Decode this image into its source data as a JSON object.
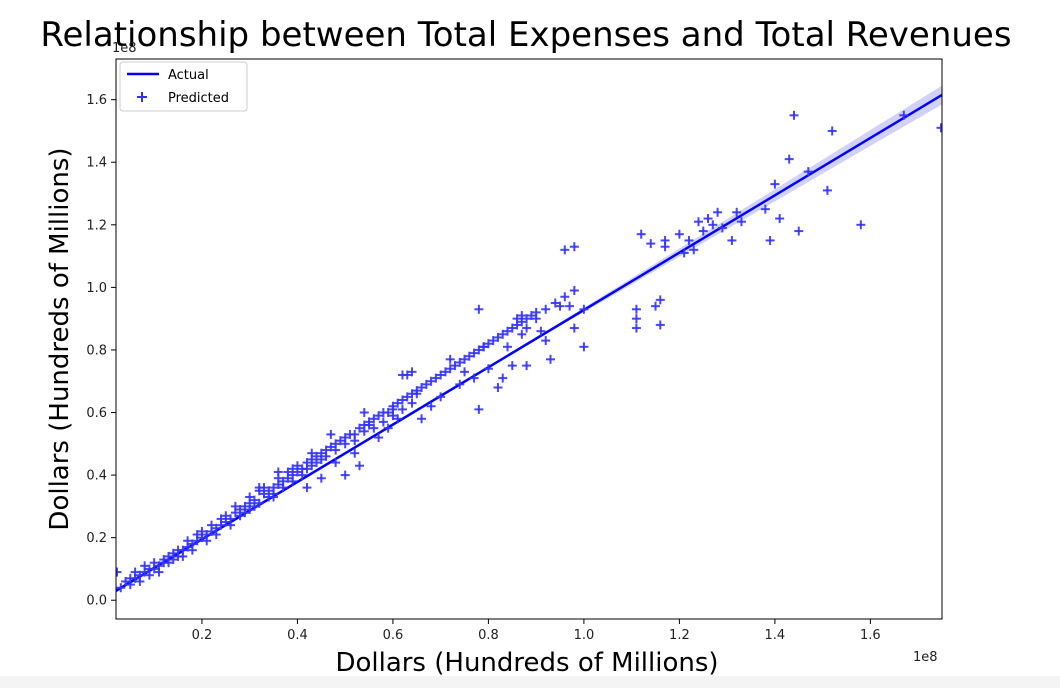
{
  "chart_data": {
    "type": "scatter",
    "title": "Relationship between Total Expenses and Total Revenues",
    "xlabel": "Dollars (Hundreds of Millions)",
    "ylabel": "Dollars (Hundreds of Millions)",
    "x_offset_label": "1e8",
    "y_offset_label": "1e8",
    "xlim": [
      0.02,
      1.75
    ],
    "ylim": [
      -0.06,
      1.73
    ],
    "x_ticks": [
      0.2,
      0.4,
      0.6,
      0.8,
      1.0,
      1.2,
      1.4,
      1.6
    ],
    "x_tick_labels": [
      "0.2",
      "0.4",
      "0.6",
      "0.8",
      "1.0",
      "1.2",
      "1.4",
      "1.6"
    ],
    "y_ticks": [
      0.0,
      0.2,
      0.4,
      0.6,
      0.8,
      1.0,
      1.2,
      1.4,
      1.6
    ],
    "y_tick_labels": [
      "0.0",
      "0.2",
      "0.4",
      "0.6",
      "0.8",
      "1.0",
      "1.2",
      "1.4",
      "1.6"
    ],
    "grid": false,
    "legend_position": "top-left",
    "legend": [
      {
        "label": "Actual",
        "marker": "line"
      },
      {
        "label": "Predicted",
        "marker": "plus"
      }
    ],
    "colors": {
      "line": "#0000ff",
      "marker": "#3333ff",
      "band": "#b3b3f5"
    },
    "fit_line": {
      "name": "Actual",
      "x": [
        0.02,
        1.75
      ],
      "y": [
        0.03,
        1.615
      ]
    },
    "band_halfwidth": {
      "x": [
        0.02,
        0.9,
        1.75
      ],
      "w": [
        0.006,
        0.004,
        0.03
      ]
    },
    "series": [
      {
        "name": "Predicted",
        "points": [
          [
            0.02,
            0.09
          ],
          [
            0.03,
            0.04
          ],
          [
            0.04,
            0.06
          ],
          [
            0.05,
            0.07
          ],
          [
            0.05,
            0.05
          ],
          [
            0.06,
            0.07
          ],
          [
            0.06,
            0.09
          ],
          [
            0.07,
            0.08
          ],
          [
            0.07,
            0.06
          ],
          [
            0.08,
            0.09
          ],
          [
            0.08,
            0.11
          ],
          [
            0.09,
            0.1
          ],
          [
            0.09,
            0.08
          ],
          [
            0.1,
            0.1
          ],
          [
            0.1,
            0.12
          ],
          [
            0.11,
            0.11
          ],
          [
            0.11,
            0.09
          ],
          [
            0.12,
            0.12
          ],
          [
            0.12,
            0.13
          ],
          [
            0.13,
            0.12
          ],
          [
            0.13,
            0.14
          ],
          [
            0.14,
            0.13
          ],
          [
            0.14,
            0.15
          ],
          [
            0.15,
            0.14
          ],
          [
            0.15,
            0.16
          ],
          [
            0.16,
            0.16
          ],
          [
            0.16,
            0.14
          ],
          [
            0.17,
            0.17
          ],
          [
            0.17,
            0.19
          ],
          [
            0.18,
            0.18
          ],
          [
            0.18,
            0.16
          ],
          [
            0.19,
            0.19
          ],
          [
            0.19,
            0.21
          ],
          [
            0.2,
            0.2
          ],
          [
            0.2,
            0.22
          ],
          [
            0.21,
            0.21
          ],
          [
            0.21,
            0.19
          ],
          [
            0.22,
            0.22
          ],
          [
            0.22,
            0.24
          ],
          [
            0.23,
            0.23
          ],
          [
            0.23,
            0.21
          ],
          [
            0.24,
            0.24
          ],
          [
            0.24,
            0.26
          ],
          [
            0.25,
            0.25
          ],
          [
            0.25,
            0.27
          ],
          [
            0.26,
            0.26
          ],
          [
            0.26,
            0.24
          ],
          [
            0.27,
            0.28
          ],
          [
            0.27,
            0.3
          ],
          [
            0.28,
            0.27
          ],
          [
            0.28,
            0.29
          ],
          [
            0.29,
            0.3
          ],
          [
            0.29,
            0.28
          ],
          [
            0.3,
            0.31
          ],
          [
            0.3,
            0.29
          ],
          [
            0.31,
            0.32
          ],
          [
            0.31,
            0.3
          ],
          [
            0.32,
            0.35
          ],
          [
            0.32,
            0.31
          ],
          [
            0.33,
            0.34
          ],
          [
            0.33,
            0.36
          ],
          [
            0.34,
            0.35
          ],
          [
            0.34,
            0.33
          ],
          [
            0.35,
            0.36
          ],
          [
            0.35,
            0.34
          ],
          [
            0.36,
            0.37
          ],
          [
            0.36,
            0.39
          ],
          [
            0.37,
            0.38
          ],
          [
            0.37,
            0.36
          ],
          [
            0.38,
            0.39
          ],
          [
            0.38,
            0.41
          ],
          [
            0.39,
            0.4
          ],
          [
            0.39,
            0.38
          ],
          [
            0.4,
            0.41
          ],
          [
            0.4,
            0.43
          ],
          [
            0.41,
            0.42
          ],
          [
            0.41,
            0.4
          ],
          [
            0.42,
            0.44
          ],
          [
            0.42,
            0.42
          ],
          [
            0.43,
            0.45
          ],
          [
            0.43,
            0.43
          ],
          [
            0.44,
            0.46
          ],
          [
            0.44,
            0.44
          ],
          [
            0.45,
            0.47
          ],
          [
            0.45,
            0.45
          ],
          [
            0.46,
            0.48
          ],
          [
            0.46,
            0.46
          ],
          [
            0.47,
            0.49
          ],
          [
            0.48,
            0.5
          ],
          [
            0.48,
            0.48
          ],
          [
            0.49,
            0.51
          ],
          [
            0.5,
            0.52
          ],
          [
            0.5,
            0.5
          ],
          [
            0.51,
            0.53
          ],
          [
            0.52,
            0.53
          ],
          [
            0.52,
            0.51
          ],
          [
            0.53,
            0.55
          ],
          [
            0.54,
            0.56
          ],
          [
            0.54,
            0.54
          ],
          [
            0.55,
            0.57
          ],
          [
            0.56,
            0.58
          ],
          [
            0.56,
            0.55
          ],
          [
            0.57,
            0.59
          ],
          [
            0.58,
            0.6
          ],
          [
            0.58,
            0.57
          ],
          [
            0.59,
            0.6
          ],
          [
            0.6,
            0.62
          ],
          [
            0.6,
            0.59
          ],
          [
            0.61,
            0.63
          ],
          [
            0.62,
            0.64
          ],
          [
            0.62,
            0.61
          ],
          [
            0.63,
            0.65
          ],
          [
            0.64,
            0.66
          ],
          [
            0.64,
            0.63
          ],
          [
            0.65,
            0.67
          ],
          [
            0.66,
            0.68
          ],
          [
            0.67,
            0.69
          ],
          [
            0.68,
            0.7
          ],
          [
            0.69,
            0.71
          ],
          [
            0.7,
            0.72
          ],
          [
            0.71,
            0.73
          ],
          [
            0.72,
            0.74
          ],
          [
            0.73,
            0.75
          ],
          [
            0.74,
            0.76
          ],
          [
            0.75,
            0.77
          ],
          [
            0.76,
            0.78
          ],
          [
            0.77,
            0.79
          ],
          [
            0.78,
            0.8
          ],
          [
            0.79,
            0.81
          ],
          [
            0.8,
            0.82
          ],
          [
            0.81,
            0.83
          ],
          [
            0.82,
            0.84
          ],
          [
            0.83,
            0.85
          ],
          [
            0.84,
            0.86
          ],
          [
            0.85,
            0.87
          ],
          [
            0.86,
            0.88
          ],
          [
            0.87,
            0.89
          ],
          [
            0.88,
            0.9
          ],
          [
            0.89,
            0.91
          ],
          [
            0.9,
            0.92
          ],
          [
            0.92,
            0.93
          ],
          [
            0.94,
            0.95
          ],
          [
            0.96,
            0.97
          ],
          [
            0.98,
            0.99
          ],
          [
            0.3,
            0.33
          ],
          [
            0.32,
            0.36
          ],
          [
            0.35,
            0.33
          ],
          [
            0.36,
            0.41
          ],
          [
            0.39,
            0.42
          ],
          [
            0.42,
            0.36
          ],
          [
            0.43,
            0.47
          ],
          [
            0.45,
            0.39
          ],
          [
            0.47,
            0.53
          ],
          [
            0.48,
            0.44
          ],
          [
            0.5,
            0.4
          ],
          [
            0.52,
            0.47
          ],
          [
            0.53,
            0.43
          ],
          [
            0.54,
            0.6
          ],
          [
            0.55,
            0.56
          ],
          [
            0.57,
            0.52
          ],
          [
            0.59,
            0.55
          ],
          [
            0.6,
            0.61
          ],
          [
            0.61,
            0.58
          ],
          [
            0.62,
            0.72
          ],
          [
            0.63,
            0.72
          ],
          [
            0.64,
            0.73
          ],
          [
            0.65,
            0.66
          ],
          [
            0.66,
            0.58
          ],
          [
            0.68,
            0.62
          ],
          [
            0.7,
            0.65
          ],
          [
            0.72,
            0.77
          ],
          [
            0.74,
            0.69
          ],
          [
            0.75,
            0.73
          ],
          [
            0.77,
            0.71
          ],
          [
            0.78,
            0.61
          ],
          [
            0.79,
            0.81
          ],
          [
            0.8,
            0.74
          ],
          [
            0.82,
            0.68
          ],
          [
            0.83,
            0.71
          ],
          [
            0.84,
            0.81
          ],
          [
            0.85,
            0.75
          ],
          [
            0.86,
            0.9
          ],
          [
            0.87,
            0.85
          ],
          [
            0.88,
            0.87
          ],
          [
            0.88,
            0.75
          ],
          [
            0.9,
            0.9
          ],
          [
            0.91,
            0.86
          ],
          [
            0.92,
            0.83
          ],
          [
            0.93,
            0.77
          ],
          [
            0.95,
            0.94
          ],
          [
            0.97,
            0.94
          ],
          [
            0.98,
            0.87
          ],
          [
            0.96,
            1.12
          ],
          [
            0.98,
            1.13
          ],
          [
            1.0,
            0.93
          ],
          [
            1.0,
            0.81
          ],
          [
            0.78,
            0.93
          ],
          [
            0.87,
            0.91
          ],
          [
            1.11,
            0.9
          ],
          [
            1.11,
            0.93
          ],
          [
            1.11,
            0.87
          ],
          [
            1.12,
            1.17
          ],
          [
            1.14,
            1.14
          ],
          [
            1.15,
            0.94
          ],
          [
            1.16,
            0.96
          ],
          [
            1.16,
            0.88
          ],
          [
            1.17,
            1.13
          ],
          [
            1.17,
            1.15
          ],
          [
            1.2,
            1.17
          ],
          [
            1.21,
            1.11
          ],
          [
            1.22,
            1.15
          ],
          [
            1.23,
            1.12
          ],
          [
            1.24,
            1.21
          ],
          [
            1.25,
            1.18
          ],
          [
            1.26,
            1.22
          ],
          [
            1.27,
            1.2
          ],
          [
            1.28,
            1.24
          ],
          [
            1.29,
            1.19
          ],
          [
            1.31,
            1.15
          ],
          [
            1.32,
            1.24
          ],
          [
            1.33,
            1.21
          ],
          [
            1.38,
            1.25
          ],
          [
            1.39,
            1.15
          ],
          [
            1.4,
            1.33
          ],
          [
            1.41,
            1.22
          ],
          [
            1.43,
            1.41
          ],
          [
            1.44,
            1.55
          ],
          [
            1.45,
            1.18
          ],
          [
            1.47,
            1.37
          ],
          [
            1.51,
            1.31
          ],
          [
            1.52,
            1.5
          ],
          [
            1.58,
            1.2
          ],
          [
            1.67,
            1.55
          ],
          [
            1.75,
            1.51
          ]
        ]
      }
    ]
  }
}
